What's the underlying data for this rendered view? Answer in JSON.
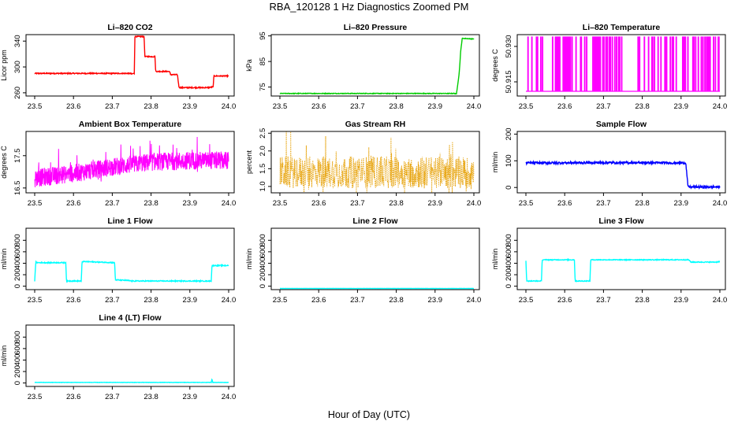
{
  "page": {
    "title": "RBA_120128  1 Hz Diagnostics Zoomed PM",
    "xlabel": "Hour of Day (UTC)"
  },
  "chart_data": [
    {
      "type": "line",
      "title": "Li–820 CO2",
      "ylabel": "Licor ppm",
      "color": "#ff0000",
      "xlim": [
        23.5,
        24.0
      ],
      "ylim": [
        255,
        350
      ],
      "yticks": [
        260,
        300,
        340
      ],
      "xticks": [
        "23.5",
        "23.6",
        "23.7",
        "23.8",
        "23.9",
        "24.0"
      ],
      "x": [
        23.5,
        23.748,
        23.749,
        23.757,
        23.758,
        23.782,
        23.784,
        23.81,
        23.812,
        23.848,
        23.85,
        23.868,
        23.872,
        23.938,
        23.945,
        23.96,
        23.962,
        24.0
      ],
      "y": [
        290,
        290,
        289,
        290,
        347,
        347,
        316,
        316,
        293,
        293,
        288,
        288,
        268,
        268,
        268,
        269,
        286,
        286
      ],
      "noise": 0.8
    },
    {
      "type": "line",
      "title": "Li–820 Pressure",
      "ylabel": "kPa",
      "color": "#00cc00",
      "xlim": [
        23.5,
        24.0
      ],
      "ylim": [
        71.5,
        95.5
      ],
      "yticks": [
        75,
        85,
        95
      ],
      "xticks": [
        "23.5",
        "23.6",
        "23.7",
        "23.8",
        "23.9",
        "24.0"
      ],
      "x": [
        23.5,
        23.95,
        23.955,
        23.962,
        23.966,
        23.97,
        23.975,
        24.0
      ],
      "y": [
        72.5,
        72.5,
        72.3,
        80,
        89,
        94,
        94,
        93.8
      ],
      "noise": 0.12
    },
    {
      "type": "pulses",
      "title": "Li–820 Temperature",
      "ylabel": "degrees C",
      "color": "#ff00ff",
      "xlim": [
        23.5,
        24.0
      ],
      "ylim": [
        50.909,
        50.935
      ],
      "yticks": [
        50.915,
        50.93
      ],
      "ytick_labels": [
        "50.915",
        "50.930"
      ],
      "xticks": [
        "23.5",
        "23.6",
        "23.7",
        "23.8",
        "23.9",
        "24.0"
      ],
      "levels": [
        50.911,
        50.934
      ],
      "pulse_count": 165
    },
    {
      "type": "noise",
      "title": "Ambient Box Temperature",
      "ylabel": "degrees C",
      "color": "#ff00ff",
      "xlim": [
        23.5,
        24.0
      ],
      "ylim": [
        16.35,
        18.25
      ],
      "yticks": [
        16.5,
        17.5
      ],
      "xticks": [
        "23.5",
        "23.6",
        "23.7",
        "23.8",
        "23.9",
        "24.0"
      ],
      "x": [
        23.5,
        23.6,
        23.7,
        23.8,
        23.9,
        24.0
      ],
      "y": [
        16.8,
        16.95,
        17.15,
        17.3,
        17.35,
        17.35
      ],
      "spread": 0.28,
      "spike": 0.45
    },
    {
      "type": "dots",
      "title": "Gas Stream RH",
      "ylabel": "percent",
      "color": "#e69f00",
      "xlim": [
        23.5,
        24.0
      ],
      "ylim": [
        0.82,
        2.55
      ],
      "yticks": [
        1.0,
        1.5,
        2.0,
        2.5
      ],
      "ytick_labels": [
        "1.0",
        "1.5",
        "2.0",
        "2.5"
      ],
      "xticks": [
        "23.5",
        "23.6",
        "23.7",
        "23.8",
        "23.9",
        "24.0"
      ],
      "x": [
        23.5,
        24.0
      ],
      "y": [
        1.4,
        1.4
      ],
      "spread": 0.45,
      "spike": 0.7
    },
    {
      "type": "line",
      "title": "Sample Flow",
      "ylabel": "ml/min",
      "color": "#0000ff",
      "xlim": [
        23.5,
        24.0
      ],
      "ylim": [
        -20,
        210
      ],
      "yticks": [
        0,
        100,
        200
      ],
      "xticks": [
        "23.5",
        "23.6",
        "23.7",
        "23.8",
        "23.9",
        "24.0"
      ],
      "x": [
        23.5,
        23.7,
        23.9,
        23.912,
        23.918,
        24.0
      ],
      "y": [
        92,
        93,
        92,
        92,
        2,
        2
      ],
      "noise": 4
    },
    {
      "type": "line",
      "title": "Line 1 Flow",
      "ylabel": "ml/min",
      "color": "#00ffff",
      "xlim": [
        23.5,
        24.0
      ],
      "ylim": [
        -60,
        1010
      ],
      "yticks": [
        0,
        200,
        400,
        600,
        800
      ],
      "xticks": [
        "23.5",
        "23.6",
        "23.7",
        "23.8",
        "23.9",
        "24.0"
      ],
      "x": [
        23.5,
        23.503,
        23.505,
        23.58,
        23.582,
        23.62,
        23.622,
        23.706,
        23.708,
        23.74,
        23.75,
        23.955,
        23.957,
        24.0
      ],
      "y": [
        90,
        430,
        410,
        410,
        90,
        90,
        430,
        410,
        110,
        100,
        90,
        90,
        360,
        360
      ],
      "noise": 8
    },
    {
      "type": "line",
      "title": "Line 2 Flow",
      "ylabel": "ml/min",
      "color": "#00ffff",
      "xlim": [
        23.5,
        24.0
      ],
      "ylim": [
        -60,
        1010
      ],
      "yticks": [
        0,
        200,
        400,
        600,
        800
      ],
      "xticks": [
        "23.5",
        "23.6",
        "23.7",
        "23.8",
        "23.9",
        "24.0"
      ],
      "x": [
        23.5,
        24.0
      ],
      "y": [
        -40,
        -40
      ],
      "noise": 1
    },
    {
      "type": "line",
      "title": "Line 3 Flow",
      "ylabel": "ml/min",
      "color": "#00ffff",
      "xlim": [
        23.5,
        24.0
      ],
      "ylim": [
        -60,
        1010
      ],
      "yticks": [
        0,
        200,
        400,
        600,
        800
      ],
      "xticks": [
        "23.5",
        "23.6",
        "23.7",
        "23.8",
        "23.9",
        "24.0"
      ],
      "x": [
        23.5,
        23.502,
        23.54,
        23.542,
        23.625,
        23.627,
        23.665,
        23.667,
        23.92,
        23.925,
        23.99,
        24.0
      ],
      "y": [
        450,
        90,
        90,
        460,
        460,
        90,
        90,
        460,
        460,
        420,
        420,
        430
      ],
      "noise": 7
    },
    {
      "type": "line",
      "title": "Line 4 (LT) Flow",
      "ylabel": "ml/min",
      "color": "#00ffff",
      "xlim": [
        23.5,
        24.0
      ],
      "ylim": [
        -60,
        1010
      ],
      "yticks": [
        0,
        200,
        400,
        600,
        800
      ],
      "xticks": [
        "23.5",
        "23.6",
        "23.7",
        "23.8",
        "23.9",
        "24.0"
      ],
      "x": [
        23.5,
        23.955,
        23.957,
        23.959,
        23.961,
        24.0
      ],
      "y": [
        10,
        10,
        70,
        10,
        10,
        10
      ],
      "noise": 3
    }
  ]
}
